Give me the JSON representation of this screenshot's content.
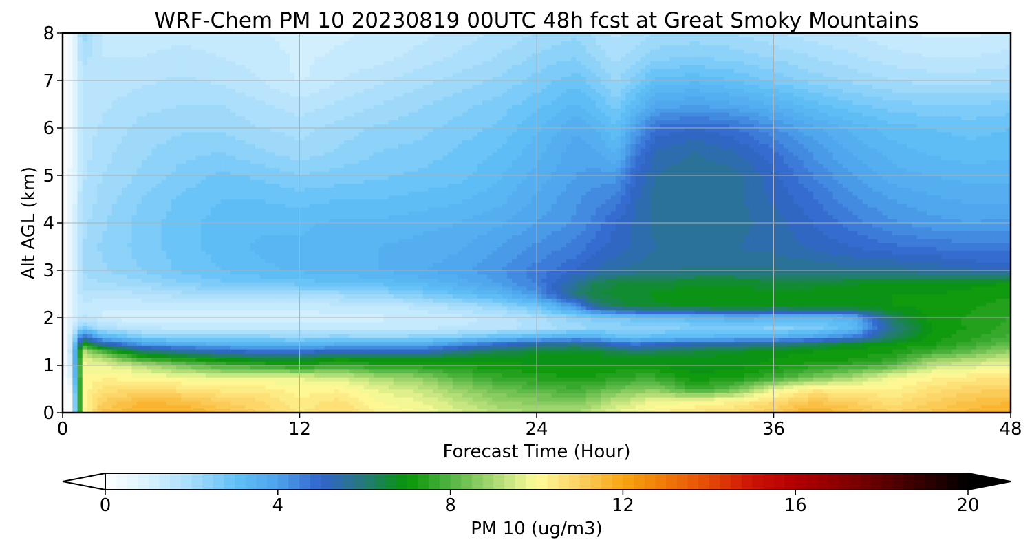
{
  "chart_data": {
    "type": "heatmap",
    "title": "WRF-Chem PM 10  20230819 00UTC 48h fcst at Great Smoky Mountains",
    "xlabel": "Forecast Time (Hour)",
    "ylabel": "Alt AGL (km)",
    "xlim": [
      0,
      48
    ],
    "ylim": [
      0,
      8
    ],
    "x_ticks": [
      0,
      12,
      24,
      36,
      48
    ],
    "y_ticks": [
      0,
      1,
      2,
      3,
      4,
      5,
      6,
      7,
      8
    ],
    "grid": true,
    "colorbar": {
      "label": "PM 10  (ug/m3)",
      "orientation": "horizontal",
      "placement": "bottom",
      "range": [
        0,
        20
      ],
      "ticks": [
        0,
        4,
        8,
        12,
        16,
        20
      ],
      "extend": "both",
      "stops": [
        {
          "v": 0,
          "color": "#ffffff"
        },
        {
          "v": 1,
          "color": "#d8f2fe"
        },
        {
          "v": 2,
          "color": "#a6dcfa"
        },
        {
          "v": 3,
          "color": "#62c1f6"
        },
        {
          "v": 4,
          "color": "#4ca3ec"
        },
        {
          "v": 5,
          "color": "#3264cc"
        },
        {
          "v": 6,
          "color": "#257a78"
        },
        {
          "v": 7,
          "color": "#069606"
        },
        {
          "v": 8,
          "color": "#52b442"
        },
        {
          "v": 9,
          "color": "#a8d872"
        },
        {
          "v": 10,
          "color": "#fefc9a"
        },
        {
          "v": 11,
          "color": "#fcd062"
        },
        {
          "v": 12,
          "color": "#f7a410"
        },
        {
          "v": 13,
          "color": "#f07808"
        },
        {
          "v": 14,
          "color": "#e44a06"
        },
        {
          "v": 15,
          "color": "#cc1204"
        },
        {
          "v": 16,
          "color": "#b20000"
        },
        {
          "v": 17,
          "color": "#8c0000"
        },
        {
          "v": 18,
          "color": "#5e0000"
        },
        {
          "v": 19,
          "color": "#300000"
        },
        {
          "v": 20,
          "color": "#000000"
        }
      ]
    },
    "x_hours": [
      0,
      0.5,
      1,
      2,
      4,
      6,
      8,
      10,
      12,
      14,
      16,
      18,
      20,
      22,
      24,
      26,
      27,
      28,
      29,
      30,
      32,
      34,
      36,
      38,
      40,
      42,
      44,
      46,
      48
    ],
    "z_km": [
      0,
      0.25,
      0.5,
      0.75,
      1.0,
      1.15,
      1.3,
      1.45,
      1.6,
      1.8,
      2.0,
      2.25,
      2.5,
      2.75,
      3.0,
      3.5,
      4.0,
      4.5,
      5.0,
      5.5,
      6.0,
      6.5,
      7.0,
      7.5,
      8.0
    ],
    "values": [
      [
        0.0,
        0.0,
        10.0,
        11.3,
        11.8,
        11.8,
        11.4,
        11.0,
        10.5,
        10.8,
        10.2,
        10.0,
        9.6,
        9.2,
        9.0,
        9.0,
        9.4,
        9.8,
        10.0,
        10.2,
        10.5,
        10.8,
        11.2,
        11.8,
        11.4,
        11.0,
        11.3,
        11.6,
        11.8
      ],
      [
        0.0,
        0.0,
        10.0,
        11.0,
        11.5,
        11.4,
        11.0,
        10.8,
        10.3,
        10.6,
        10.0,
        9.8,
        9.3,
        8.8,
        8.6,
        8.5,
        8.8,
        9.2,
        9.5,
        9.8,
        10.0,
        10.2,
        10.7,
        11.2,
        11.0,
        10.6,
        11.0,
        11.3,
        11.5
      ],
      [
        0.0,
        0.5,
        10.0,
        10.6,
        10.8,
        10.6,
        10.4,
        10.4,
        10.1,
        10.2,
        9.7,
        9.4,
        8.8,
        8.3,
        8.0,
        7.8,
        8.0,
        8.3,
        8.5,
        8.6,
        7.6,
        8.2,
        9.7,
        10.4,
        10.3,
        10.2,
        10.6,
        10.9,
        11.0
      ],
      [
        0.0,
        1.0,
        10.0,
        10.2,
        10.1,
        9.9,
        9.7,
        9.7,
        9.7,
        9.5,
        9.0,
        8.7,
        8.0,
        7.6,
        7.4,
        7.2,
        7.3,
        7.5,
        7.6,
        7.6,
        7.1,
        7.2,
        7.7,
        8.4,
        9.0,
        9.9,
        10.2,
        10.4,
        10.5
      ],
      [
        0.0,
        1.4,
        9.9,
        9.8,
        9.2,
        8.4,
        7.8,
        7.6,
        7.2,
        7.7,
        7.3,
        7.3,
        7.2,
        7.1,
        7.0,
        7.0,
        7.0,
        7.0,
        7.0,
        7.0,
        6.8,
        6.9,
        7.1,
        7.4,
        7.6,
        8.0,
        9.3,
        9.6,
        9.8
      ],
      [
        0.0,
        1.6,
        9.6,
        9.2,
        7.6,
        7.2,
        6.8,
        6.5,
        6.5,
        6.9,
        6.8,
        6.7,
        6.8,
        6.9,
        6.9,
        6.9,
        6.9,
        6.8,
        6.8,
        6.9,
        6.8,
        6.9,
        7.0,
        7.1,
        7.2,
        7.5,
        8.6,
        9.0,
        9.4
      ],
      [
        0.0,
        1.7,
        9.2,
        7.8,
        6.2,
        5.6,
        5.1,
        4.8,
        4.8,
        5.1,
        5.1,
        5.0,
        5.8,
        6.3,
        6.6,
        6.7,
        6.6,
        6.4,
        6.1,
        6.2,
        6.5,
        6.7,
        6.9,
        7.0,
        7.1,
        7.2,
        7.7,
        8.2,
        8.8
      ],
      [
        0.0,
        1.6,
        7.4,
        5.6,
        4.1,
        3.7,
        3.5,
        3.4,
        3.4,
        3.6,
        3.6,
        3.6,
        4.2,
        5.0,
        5.6,
        5.9,
        5.6,
        5.0,
        4.8,
        5.1,
        5.4,
        5.6,
        5.9,
        6.3,
        6.8,
        7.0,
        7.2,
        7.7,
        8.2
      ],
      [
        0.0,
        1.4,
        5.2,
        3.5,
        2.6,
        2.4,
        2.4,
        2.4,
        2.3,
        2.4,
        2.3,
        2.4,
        2.6,
        3.0,
        3.3,
        3.7,
        3.5,
        3.1,
        3.0,
        3.1,
        3.3,
        3.4,
        3.5,
        3.9,
        4.6,
        6.2,
        7.1,
        7.4,
        7.8
      ],
      [
        0.0,
        1.2,
        2.6,
        1.8,
        1.5,
        1.4,
        1.4,
        1.4,
        1.4,
        1.4,
        1.4,
        1.4,
        1.5,
        1.6,
        1.8,
        2.1,
        2.3,
        2.3,
        2.4,
        2.4,
        2.5,
        2.6,
        2.4,
        2.5,
        3.2,
        5.8,
        7.0,
        7.3,
        7.6
      ],
      [
        0.0,
        1.0,
        1.6,
        1.2,
        1.1,
        1.1,
        1.1,
        1.1,
        1.1,
        1.2,
        1.2,
        1.3,
        1.4,
        1.6,
        1.9,
        2.4,
        2.6,
        2.7,
        2.9,
        2.9,
        3.2,
        3.5,
        3.4,
        3.2,
        3.5,
        6.2,
        7.1,
        7.3,
        7.5
      ],
      [
        0.0,
        0.9,
        1.4,
        1.3,
        1.3,
        1.3,
        1.3,
        1.3,
        1.3,
        1.4,
        1.4,
        1.6,
        1.9,
        2.2,
        2.8,
        4.2,
        5.8,
        6.3,
        6.6,
        6.7,
        6.8,
        6.9,
        6.8,
        6.9,
        7.0,
        7.0,
        7.1,
        7.2,
        7.4
      ],
      [
        0.0,
        0.9,
        1.7,
        1.6,
        1.7,
        1.9,
        2.0,
        2.0,
        2.1,
        2.1,
        2.3,
        2.6,
        3.0,
        3.4,
        4.2,
        6.0,
        6.5,
        6.6,
        6.7,
        6.8,
        6.9,
        6.9,
        6.8,
        6.9,
        6.9,
        7.0,
        7.0,
        7.1,
        7.2
      ],
      [
        0.0,
        0.9,
        1.9,
        2.0,
        2.2,
        2.5,
        2.7,
        2.8,
        2.9,
        3.0,
        3.1,
        3.3,
        3.6,
        4.0,
        4.6,
        5.6,
        6.3,
        6.5,
        6.5,
        6.6,
        6.7,
        6.7,
        6.6,
        6.6,
        6.7,
        6.8,
        6.8,
        6.9,
        7.0
      ],
      [
        0.0,
        0.9,
        2.0,
        2.2,
        2.5,
        2.8,
        3.0,
        3.2,
        3.3,
        3.4,
        3.5,
        3.7,
        3.9,
        4.2,
        4.6,
        5.0,
        5.3,
        5.5,
        5.6,
        5.7,
        5.8,
        5.8,
        5.8,
        5.7,
        5.6,
        5.6,
        5.5,
        5.3,
        5.2
      ],
      [
        0.0,
        0.8,
        2.0,
        2.3,
        2.6,
        2.9,
        3.1,
        3.3,
        3.3,
        3.4,
        3.5,
        3.6,
        3.7,
        4.0,
        4.3,
        4.6,
        4.9,
        5.1,
        5.3,
        5.5,
        5.6,
        5.5,
        5.4,
        5.2,
        5.0,
        4.8,
        4.7,
        4.6,
        4.6
      ],
      [
        0.0,
        0.8,
        1.9,
        2.2,
        2.6,
        2.9,
        3.1,
        3.2,
        3.2,
        3.3,
        3.3,
        3.4,
        3.5,
        3.7,
        4.0,
        4.3,
        4.6,
        5.0,
        5.3,
        5.6,
        5.7,
        5.6,
        5.4,
        5.0,
        4.6,
        4.3,
        4.1,
        4.0,
        4.1
      ],
      [
        0.0,
        0.7,
        1.8,
        2.1,
        2.5,
        2.8,
        3.0,
        3.0,
        2.9,
        3.0,
        3.0,
        3.1,
        3.2,
        3.4,
        3.8,
        4.2,
        4.4,
        4.6,
        5.2,
        5.6,
        5.7,
        5.6,
        5.2,
        4.8,
        4.3,
        4.0,
        3.8,
        3.7,
        3.7
      ],
      [
        0.0,
        0.7,
        1.7,
        2.0,
        2.3,
        2.6,
        2.8,
        2.7,
        2.5,
        2.6,
        2.7,
        2.8,
        2.9,
        3.2,
        3.6,
        4.0,
        4.1,
        4.1,
        5.0,
        5.5,
        5.7,
        5.6,
        5.1,
        4.5,
        4.0,
        3.6,
        3.5,
        3.4,
        3.4
      ],
      [
        0.0,
        0.6,
        1.6,
        1.9,
        2.2,
        2.4,
        2.5,
        2.3,
        2.1,
        2.3,
        2.5,
        2.6,
        2.8,
        3.0,
        3.4,
        3.9,
        3.8,
        3.4,
        4.6,
        5.3,
        5.5,
        5.3,
        4.8,
        4.2,
        3.7,
        3.4,
        3.2,
        3.1,
        3.2
      ],
      [
        0.0,
        0.6,
        1.6,
        1.8,
        2.1,
        2.2,
        2.2,
        2.0,
        1.9,
        2.1,
        2.3,
        2.4,
        2.6,
        2.8,
        3.2,
        3.7,
        3.5,
        3.0,
        4.0,
        4.8,
        5.0,
        4.8,
        4.3,
        3.8,
        3.4,
        3.1,
        3.0,
        2.9,
        3.0
      ],
      [
        0.0,
        0.5,
        1.5,
        1.7,
        1.9,
        2.0,
        2.0,
        1.8,
        1.6,
        1.8,
        2.0,
        2.2,
        2.4,
        2.6,
        2.9,
        3.3,
        3.0,
        2.6,
        3.2,
        3.8,
        4.0,
        3.8,
        3.5,
        3.1,
        2.8,
        2.6,
        2.5,
        2.5,
        2.6
      ],
      [
        0.0,
        0.5,
        1.6,
        1.6,
        1.7,
        1.8,
        1.7,
        1.5,
        1.2,
        1.5,
        1.7,
        1.9,
        2.1,
        2.3,
        2.6,
        2.9,
        2.6,
        2.2,
        2.6,
        3.1,
        3.2,
        3.0,
        2.7,
        2.4,
        2.2,
        2.0,
        1.9,
        1.9,
        2.0
      ],
      [
        0.0,
        0.5,
        1.9,
        1.5,
        1.5,
        1.6,
        1.5,
        1.4,
        1.2,
        1.3,
        1.4,
        1.6,
        1.8,
        2.0,
        2.3,
        2.5,
        2.2,
        1.9,
        2.1,
        2.4,
        2.5,
        2.4,
        2.2,
        2.0,
        1.8,
        1.6,
        1.5,
        1.5,
        1.6
      ],
      [
        0.0,
        0.5,
        2.2,
        1.4,
        1.4,
        1.4,
        1.4,
        1.3,
        1.1,
        1.2,
        1.3,
        1.4,
        1.6,
        1.8,
        2.0,
        2.2,
        1.9,
        1.7,
        1.8,
        2.0,
        2.1,
        2.0,
        1.8,
        1.6,
        1.5,
        1.3,
        1.2,
        1.2,
        1.3
      ]
    ]
  }
}
